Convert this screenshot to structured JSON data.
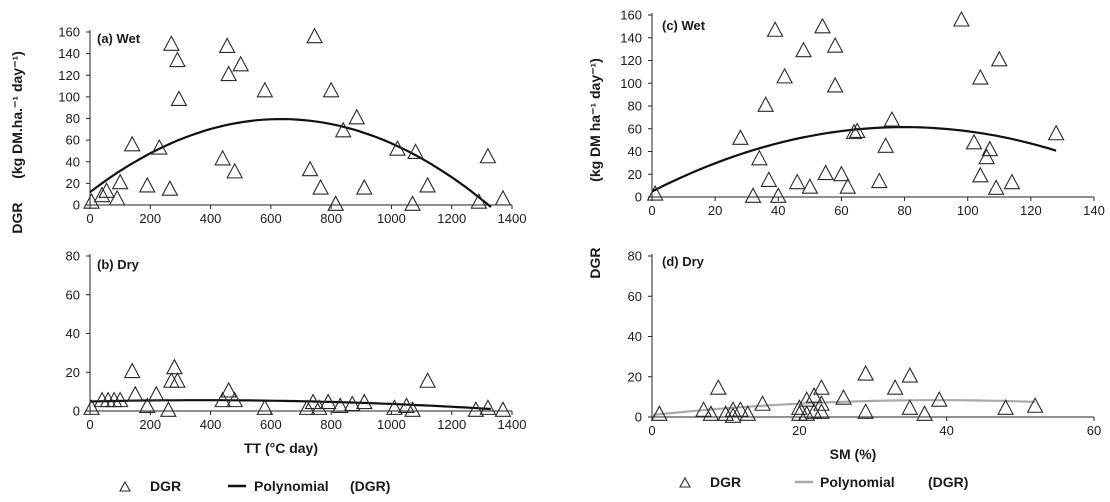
{
  "colors": {
    "marker": "#2a2a2a",
    "fit_left": "#111111",
    "fit_right_top": "#111111",
    "fit_right_bottom": "#a9a9a9",
    "background": "#ffffff"
  },
  "left_ylabel": {
    "prefix": "DGR",
    "unit": "(kg DM.ha.⁻¹ day⁻¹)"
  },
  "right_ylabel": {
    "prefix": "DGR",
    "unit": "(kg DM ha⁻¹ day⁻¹)"
  },
  "legend_left": {
    "marker_label": "DGR",
    "fit_label": "Polynomial",
    "fit_label_paren": "(DGR)"
  },
  "legend_right": {
    "marker_label": "DGR",
    "fit_label": "Polynomial",
    "fit_label_paren": "(DGR)"
  },
  "chart_data": [
    {
      "id": "a",
      "type": "scatter",
      "panel_label": "(a) Wet",
      "xlabel": "",
      "xlim": [
        0,
        1400
      ],
      "xticks": [
        0,
        200,
        400,
        600,
        800,
        1000,
        1200,
        1400
      ],
      "ylim": [
        0,
        160
      ],
      "yticks": [
        0,
        20,
        40,
        60,
        80,
        100,
        120,
        140,
        160
      ],
      "series": [
        {
          "name": "DGR",
          "marker": "triangle",
          "x": [
            5,
            40,
            55,
            90,
            100,
            140,
            190,
            230,
            265,
            270,
            290,
            295,
            440,
            455,
            460,
            480,
            500,
            580,
            730,
            745,
            765,
            800,
            815,
            840,
            885,
            910,
            1020,
            1070,
            1080,
            1120,
            1290,
            1320,
            1370
          ],
          "y": [
            2,
            8,
            12,
            5,
            20,
            55,
            17,
            52,
            14,
            148,
            133,
            97,
            42,
            146,
            120,
            30,
            129,
            105,
            32,
            155,
            15,
            105,
            0,
            68,
            80,
            15,
            51,
            0,
            48,
            17,
            2,
            44,
            5
          ]
        },
        {
          "name": "Polynomial (DGR)",
          "kind": "poly2",
          "coef": [
            11.9,
            0.2131,
            -0.000168
          ],
          "xrange": [
            0,
            1330
          ]
        }
      ]
    },
    {
      "id": "b",
      "type": "scatter",
      "panel_label": "(b) Dry",
      "xlabel": "TT (°C day)",
      "xlim": [
        0,
        1400
      ],
      "xticks": [
        0,
        200,
        400,
        600,
        800,
        1000,
        1200,
        1400
      ],
      "ylim": [
        0,
        80
      ],
      "yticks": [
        0,
        20,
        40,
        60,
        80
      ],
      "series": [
        {
          "name": "DGR",
          "marker": "triangle",
          "x": [
            5,
            40,
            60,
            80,
            100,
            140,
            150,
            190,
            220,
            260,
            270,
            280,
            290,
            440,
            460,
            480,
            580,
            720,
            740,
            760,
            790,
            830,
            870,
            910,
            1010,
            1050,
            1070,
            1120,
            1280,
            1320,
            1370
          ],
          "y": [
            1,
            5,
            5,
            5,
            5,
            20,
            8,
            2,
            8,
            0,
            15,
            22,
            15,
            5,
            10,
            5,
            1,
            1,
            4,
            1,
            4,
            2,
            3,
            4,
            1,
            2,
            0,
            15,
            0,
            1,
            0
          ],
          "x_extra": [],
          "y_extra": []
        },
        {
          "name": "Polynomial (DGR)",
          "kind": "poly2",
          "coef": [
            4.9,
            0.00367,
            -4.94e-06
          ],
          "xrange": [
            0,
            1330
          ]
        }
      ]
    },
    {
      "id": "c",
      "type": "scatter",
      "panel_label": "(c) Wet",
      "xlabel": "",
      "xlim": [
        0,
        140
      ],
      "xticks": [
        0,
        20,
        40,
        60,
        80,
        100,
        120,
        140
      ],
      "ylim": [
        0,
        160
      ],
      "yticks": [
        0,
        20,
        40,
        60,
        80,
        100,
        120,
        140,
        160
      ],
      "series": [
        {
          "name": "DGR",
          "marker": "triangle",
          "x": [
            1,
            28,
            32,
            34,
            36,
            37,
            39,
            40,
            42,
            46,
            48,
            50,
            54,
            55,
            58,
            58,
            60,
            62,
            64,
            65,
            72,
            74,
            76,
            98,
            102,
            104,
            104,
            106,
            107,
            109,
            110,
            114,
            128
          ],
          "y": [
            2,
            51,
            0,
            33,
            80,
            14,
            146,
            0,
            105,
            12,
            128,
            8,
            149,
            20,
            132,
            97,
            19,
            8,
            56,
            57,
            13,
            44,
            67,
            155,
            47,
            104,
            18,
            34,
            41,
            7,
            120,
            12,
            55
          ]
        },
        {
          "name": "Polynomial (DGR)",
          "kind": "poly2",
          "coef": [
            4.8,
            1.42,
            -0.0089
          ],
          "xrange": [
            0,
            128
          ]
        }
      ]
    },
    {
      "id": "d",
      "type": "scatter",
      "panel_label": "(d) Dry",
      "xlabel": "SM (%)",
      "xlim": [
        0,
        60
      ],
      "xticks": [
        0,
        20,
        40,
        60
      ],
      "ylim": [
        0,
        80
      ],
      "yticks": [
        0,
        20,
        40,
        60,
        80
      ],
      "series": [
        {
          "name": "DGR",
          "marker": "triangle",
          "x": [
            1,
            7,
            8,
            9,
            10,
            11,
            11,
            12,
            13,
            15,
            20,
            20,
            21,
            21,
            22,
            22,
            23,
            23,
            23,
            26,
            29,
            29,
            33,
            35,
            35,
            37,
            39,
            48,
            52
          ],
          "y": [
            1,
            3,
            1,
            14,
            1,
            3,
            0,
            3,
            1,
            6,
            1,
            4,
            1,
            8,
            2,
            10,
            2,
            14,
            6,
            9,
            21,
            2,
            14,
            4,
            20,
            1,
            8,
            4,
            5
          ]
        },
        {
          "name": "Polynomial (DGR)",
          "kind": "poly2",
          "coef": [
            1.0,
            0.38,
            -0.0049
          ],
          "xrange": [
            0,
            52
          ]
        }
      ]
    }
  ]
}
